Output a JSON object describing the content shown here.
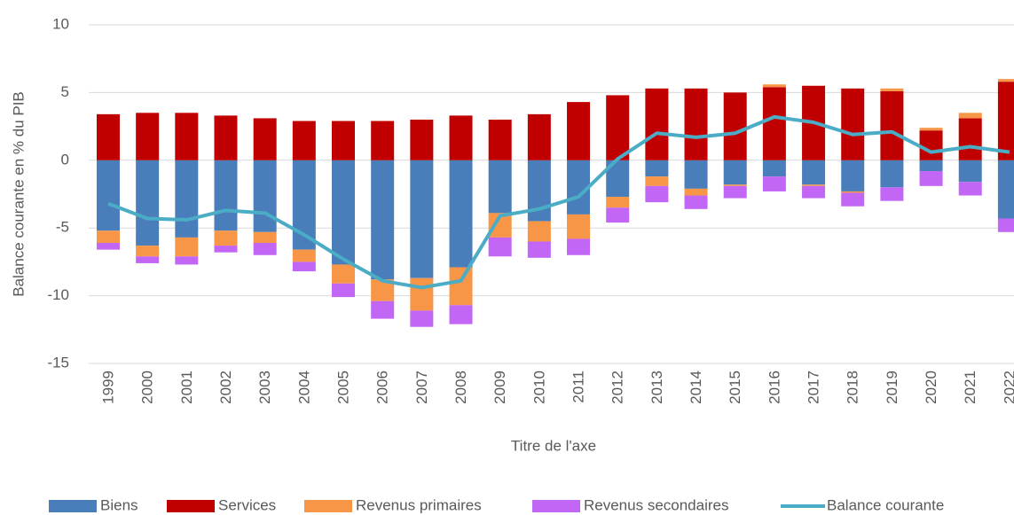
{
  "chart_data": {
    "type": "bar",
    "stacked": true,
    "x_label": "Titre de l'axe",
    "y_label": "Balance courante en % du PIB",
    "categories": [
      "1999",
      "2000",
      "2001",
      "2002",
      "2003",
      "2004",
      "2005",
      "2006",
      "2007",
      "2008",
      "2009",
      "2010",
      "2011",
      "2012",
      "2013",
      "2014",
      "2015",
      "2016",
      "2017",
      "2018",
      "2019",
      "2020",
      "2021",
      "2022"
    ],
    "series": [
      {
        "name": "Biens",
        "color": "#4a7ebb",
        "values": [
          -5.2,
          -6.3,
          -5.7,
          -5.2,
          -5.3,
          -6.6,
          -7.7,
          -8.8,
          -8.7,
          -7.9,
          -3.9,
          -4.5,
          -4.0,
          -2.7,
          -1.2,
          -2.1,
          -1.8,
          -1.2,
          -1.8,
          -2.3,
          -2.0,
          -0.8,
          -1.6,
          -4.3
        ]
      },
      {
        "name": "Services",
        "color": "#c00000",
        "values": [
          3.4,
          3.5,
          3.5,
          3.3,
          3.1,
          2.9,
          2.9,
          2.9,
          3.0,
          3.3,
          3.0,
          3.4,
          4.3,
          4.8,
          5.3,
          5.3,
          5.0,
          5.4,
          5.5,
          5.3,
          5.1,
          2.2,
          3.1,
          5.8
        ]
      },
      {
        "name": "Revenus primaires",
        "color": "#f79646",
        "values": [
          -0.9,
          -0.8,
          -1.4,
          -1.1,
          -0.8,
          -0.9,
          -1.4,
          -1.6,
          -2.4,
          -2.8,
          -1.8,
          -1.5,
          -1.8,
          -0.8,
          -0.7,
          -0.5,
          -0.1,
          0.2,
          -0.1,
          -0.1,
          0.2,
          0.2,
          0.4,
          0.2
        ]
      },
      {
        "name": "Revenus secondaires",
        "color": "#c266f5",
        "values": [
          -0.5,
          -0.5,
          -0.6,
          -0.5,
          -0.9,
          -0.7,
          -1.0,
          -1.3,
          -1.2,
          -1.4,
          -1.4,
          -1.2,
          -1.2,
          -1.1,
          -1.2,
          -1.0,
          -0.9,
          -1.1,
          -0.9,
          -1.0,
          -1.0,
          -1.1,
          -1.0,
          -1.0
        ]
      },
      {
        "name": "Balance courante",
        "type": "line",
        "color": "#4bacc6",
        "values": [
          -3.2,
          -4.3,
          -4.4,
          -3.7,
          -3.9,
          -5.5,
          -7.3,
          -8.9,
          -9.4,
          -8.9,
          -4.1,
          -3.6,
          -2.7,
          0.1,
          2.0,
          1.7,
          2.0,
          3.2,
          2.8,
          1.9,
          2.1,
          0.6,
          1.0,
          0.6
        ]
      }
    ],
    "ylim": [
      -15,
      10
    ],
    "yticks": [
      -15,
      -10,
      -5,
      0,
      5,
      10
    ],
    "grid": true
  }
}
